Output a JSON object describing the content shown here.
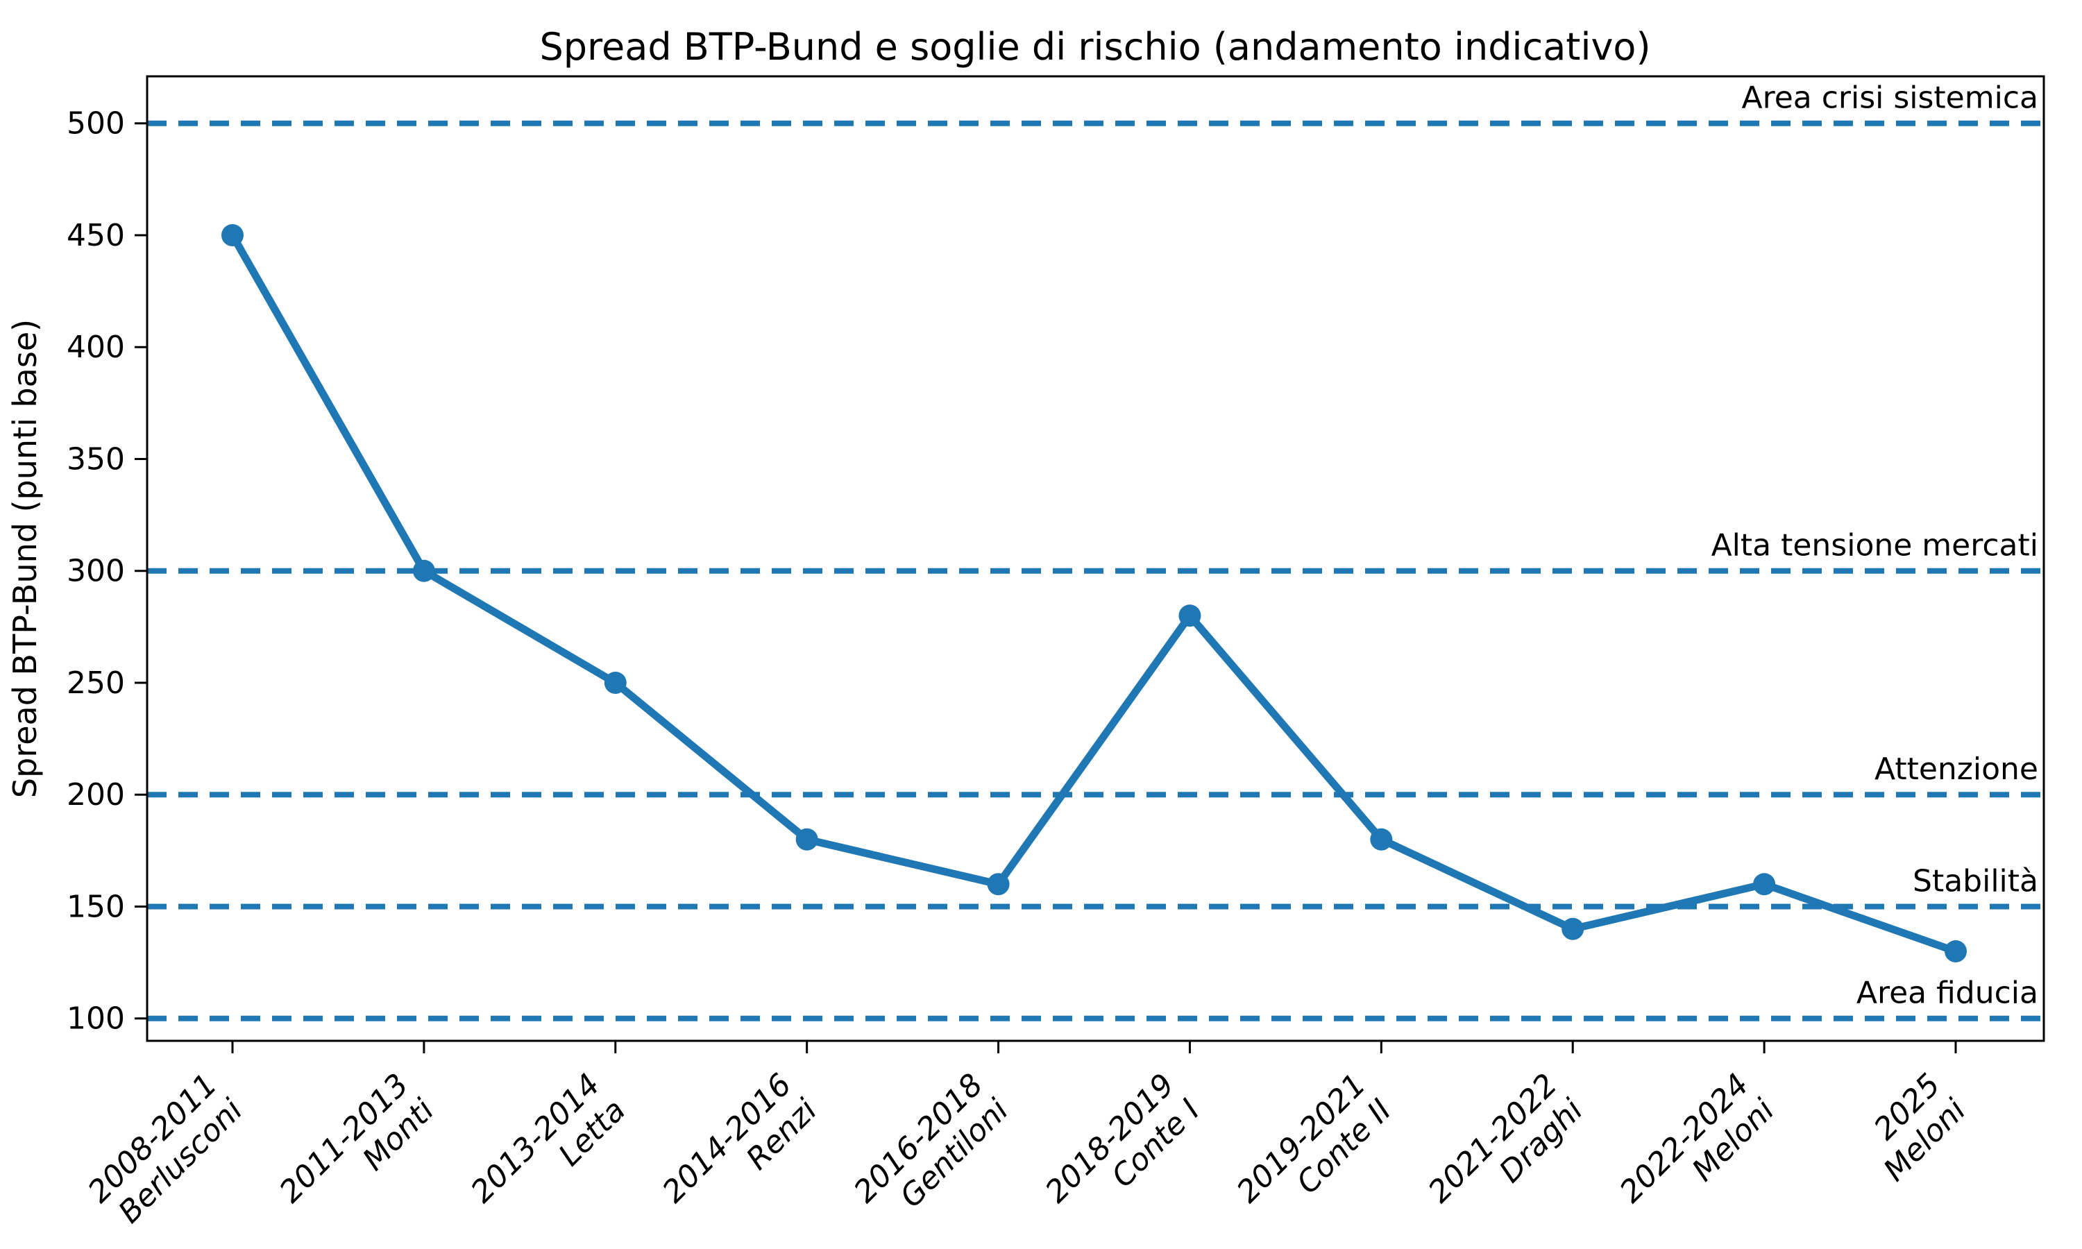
{
  "chart_data": {
    "type": "line",
    "title": "Spread BTP-Bund e soglie di rischio (andamento indicativo)",
    "xlabel": "",
    "ylabel": "Spread BTP-Bund (punti base)",
    "categories": [
      {
        "period": "2008-2011",
        "leader": "Berlusconi"
      },
      {
        "period": "2011-2013",
        "leader": "Monti"
      },
      {
        "period": "2013-2014",
        "leader": "Letta"
      },
      {
        "period": "2014-2016",
        "leader": "Renzi"
      },
      {
        "period": "2016-2018",
        "leader": "Gentiloni"
      },
      {
        "period": "2018-2019",
        "leader": "Conte I"
      },
      {
        "period": "2019-2021",
        "leader": "Conte II"
      },
      {
        "period": "2021-2022",
        "leader": "Draghi"
      },
      {
        "period": "2022-2024",
        "leader": "Meloni"
      },
      {
        "period": "2025",
        "leader": "Meloni"
      }
    ],
    "series": [
      {
        "name": "Spread BTP-Bund",
        "values": [
          450,
          300,
          250,
          180,
          160,
          280,
          180,
          140,
          160,
          130
        ]
      }
    ],
    "yticks": [
      100,
      150,
      200,
      250,
      300,
      350,
      400,
      450,
      500
    ],
    "ylim": [
      90,
      521
    ],
    "thresholds": [
      {
        "value": 500,
        "label": "Area crisi sistemica"
      },
      {
        "value": 300,
        "label": "Alta tensione mercati"
      },
      {
        "value": 200,
        "label": "Attenzione"
      },
      {
        "value": 150,
        "label": "Stabilità"
      },
      {
        "value": 100,
        "label": "Area fiducia"
      }
    ],
    "colors": {
      "line": "#1f77b4",
      "marker": "#1f77b4",
      "threshold": "#1f77b4",
      "text": "#000000",
      "spine": "#000000"
    },
    "marker": "o",
    "threshold_linestyle": "dashed",
    "grid": false,
    "legend": "none"
  }
}
